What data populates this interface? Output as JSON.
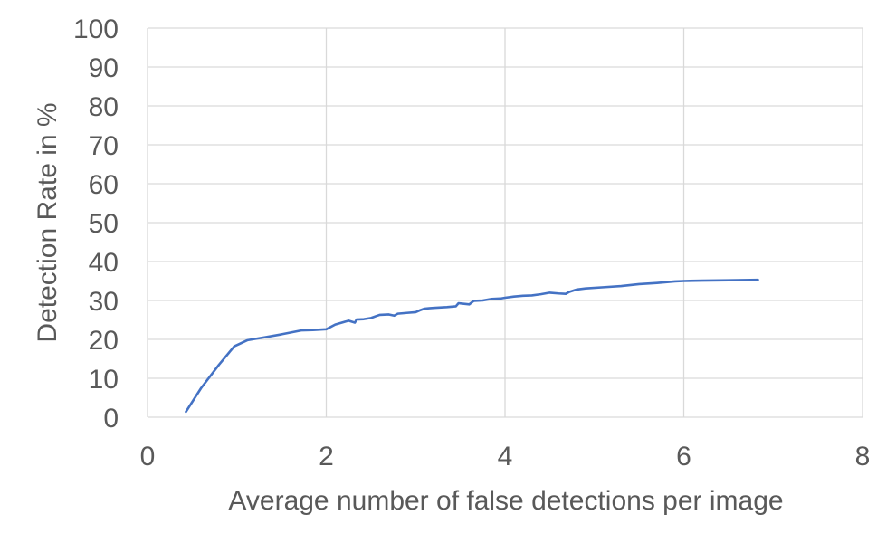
{
  "colors": {
    "series": "#4472c4",
    "grid": "#d9d9d9",
    "text": "#595959"
  },
  "chart_data": {
    "type": "line",
    "title": "",
    "xlabel": "Average number of false detections per image",
    "ylabel": "Detection Rate in %",
    "xlim": [
      0,
      8
    ],
    "ylim": [
      0,
      100
    ],
    "x_ticks": [
      0,
      2,
      4,
      6,
      8
    ],
    "y_ticks": [
      0,
      10,
      20,
      30,
      40,
      50,
      60,
      70,
      80,
      90,
      100
    ],
    "grid": true,
    "legend": "none",
    "series": [
      {
        "x": [
          0.43,
          0.6,
          0.8,
          0.97,
          1.12,
          1.3,
          1.5,
          1.72,
          1.85,
          2.0,
          2.1,
          2.25,
          2.32,
          2.34,
          2.42,
          2.5,
          2.56,
          2.6,
          2.7,
          2.76,
          2.8,
          2.9,
          3.0,
          3.05,
          3.1,
          3.15,
          3.2,
          3.35,
          3.45,
          3.48,
          3.6,
          3.65,
          3.75,
          3.85,
          3.95,
          4.0,
          4.1,
          4.2,
          4.3,
          4.4,
          4.5,
          4.6,
          4.68,
          4.72,
          4.8,
          4.9,
          5.1,
          5.3,
          5.5,
          5.7,
          5.9,
          6.0,
          6.2,
          6.5,
          6.83
        ],
        "y": [
          1.4,
          7.5,
          13.5,
          18.2,
          19.8,
          20.5,
          21.3,
          22.3,
          22.4,
          22.6,
          23.8,
          24.8,
          24.3,
          25.1,
          25.2,
          25.5,
          26.0,
          26.3,
          26.4,
          26.1,
          26.6,
          26.8,
          27.0,
          27.5,
          27.9,
          28.0,
          28.1,
          28.3,
          28.5,
          29.3,
          29.0,
          29.9,
          30.0,
          30.4,
          30.5,
          30.7,
          31.0,
          31.2,
          31.3,
          31.6,
          32.0,
          31.8,
          31.7,
          32.2,
          32.8,
          33.1,
          33.4,
          33.7,
          34.2,
          34.5,
          34.9,
          35.0,
          35.1,
          35.2,
          35.3
        ]
      }
    ]
  }
}
